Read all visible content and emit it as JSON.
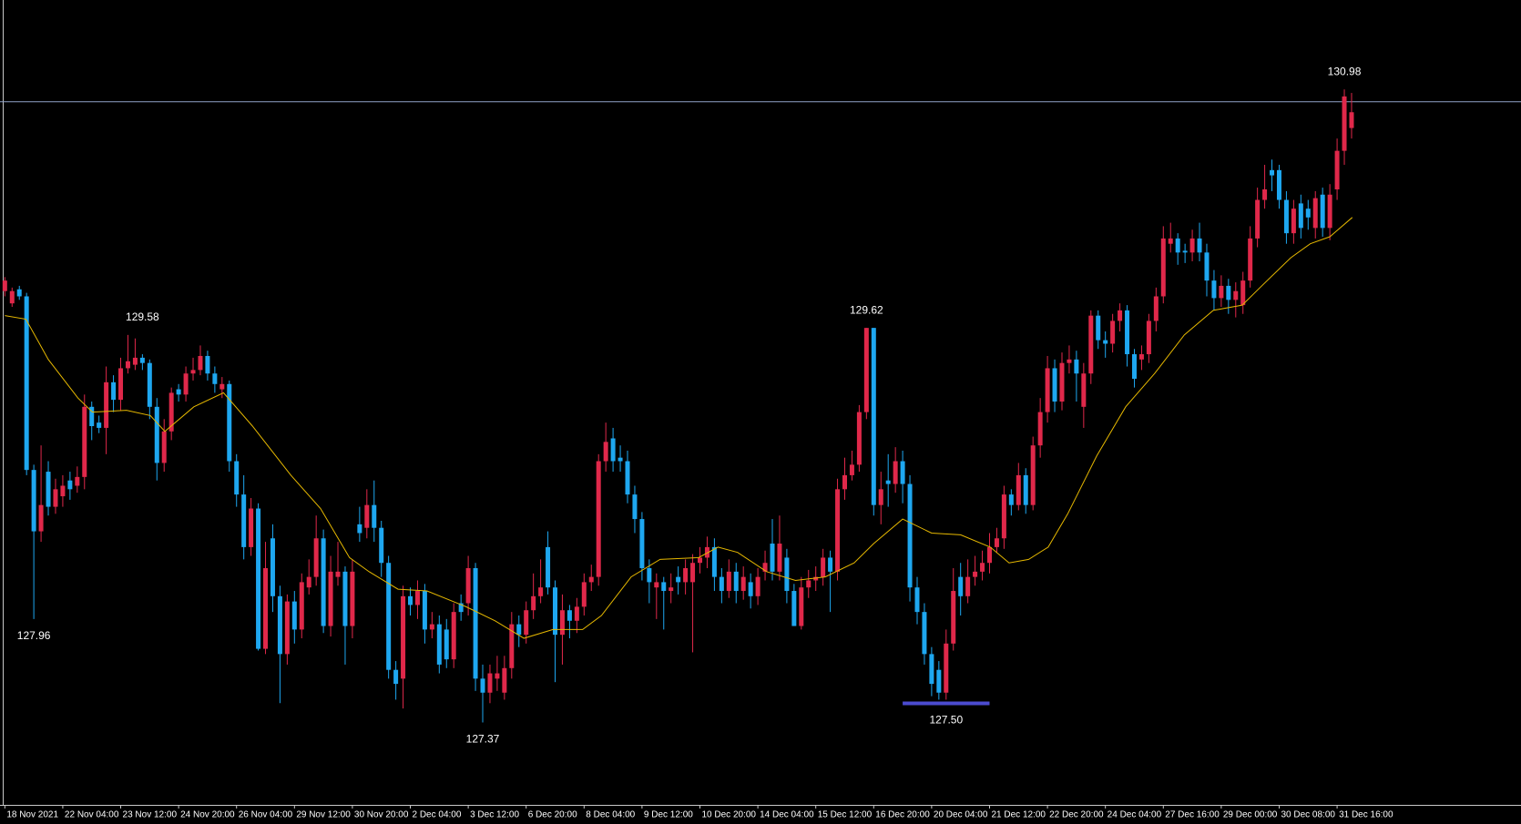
{
  "chart_data": {
    "type": "candlestick",
    "up_color": "#e0284a",
    "down_color": "#1ea7f0",
    "ylim": [
      126.9,
      131.49
    ],
    "xlim": [
      -0.67,
      209.4
    ],
    "xticks": [
      {
        "value": 0,
        "label": "18 Nov 2021"
      },
      {
        "value": 8,
        "label": "22 Nov 04:00"
      },
      {
        "value": 16,
        "label": "23 Nov 12:00"
      },
      {
        "value": 24,
        "label": "24 Nov 20:00"
      },
      {
        "value": 32,
        "label": "26 Nov 04:00"
      },
      {
        "value": 40,
        "label": "29 Nov 12:00"
      },
      {
        "value": 48,
        "label": "30 Nov 20:00"
      },
      {
        "value": 56,
        "label": "2 Dec 04:00"
      },
      {
        "value": 64,
        "label": "3 Dec 12:00"
      },
      {
        "value": 72,
        "label": "6 Dec 20:00"
      },
      {
        "value": 80,
        "label": "8 Dec 04:00"
      },
      {
        "value": 88,
        "label": "9 Dec 12:00"
      },
      {
        "value": 96,
        "label": "10 Dec 20:00"
      },
      {
        "value": 104,
        "label": "14 Dec 04:00"
      },
      {
        "value": 112,
        "label": "15 Dec 12:00"
      },
      {
        "value": 120,
        "label": "16 Dec 20:00"
      },
      {
        "value": 128,
        "label": "20 Dec 04:00"
      },
      {
        "value": 136,
        "label": "21 Dec 12:00"
      },
      {
        "value": 144,
        "label": "22 Dec 20:00"
      },
      {
        "value": 152,
        "label": "24 Dec 04:00"
      },
      {
        "value": 160,
        "label": "27 Dec 16:00"
      },
      {
        "value": 168,
        "label": "29 Dec 00:00"
      },
      {
        "value": 176,
        "label": "30 Dec 08:00"
      },
      {
        "value": 184,
        "label": "31 Dec 16:00"
      }
    ],
    "candles": [
      [
        129.83,
        129.91,
        129.8,
        129.89
      ],
      [
        129.76,
        129.85,
        129.74,
        129.83
      ],
      [
        129.84,
        129.86,
        129.78,
        129.8
      ],
      [
        129.8,
        129.82,
        128.78,
        128.81
      ],
      [
        128.81,
        128.84,
        127.96,
        128.46
      ],
      [
        128.46,
        128.95,
        128.4,
        128.61
      ],
      [
        128.8,
        128.86,
        128.55,
        128.6
      ],
      [
        128.6,
        128.76,
        128.56,
        128.7
      ],
      [
        128.66,
        128.78,
        128.6,
        128.72
      ],
      [
        128.75,
        128.8,
        128.64,
        128.7
      ],
      [
        128.72,
        128.83,
        128.68,
        128.77
      ],
      [
        128.77,
        129.24,
        128.7,
        129.17
      ],
      [
        129.17,
        129.2,
        128.98,
        129.06
      ],
      [
        129.08,
        129.12,
        129.02,
        129.05
      ],
      [
        129.05,
        129.4,
        128.9,
        129.31
      ],
      [
        129.31,
        129.35,
        129.14,
        129.21
      ],
      [
        129.21,
        129.45,
        129.15,
        129.39
      ],
      [
        129.39,
        129.58,
        129.36,
        129.43
      ],
      [
        129.41,
        129.56,
        129.38,
        129.45
      ],
      [
        129.45,
        129.47,
        129.38,
        129.42
      ],
      [
        129.42,
        129.44,
        129.1,
        129.17
      ],
      [
        129.17,
        129.22,
        128.75,
        128.85
      ],
      [
        128.85,
        129.1,
        128.8,
        129.03
      ],
      [
        129.03,
        129.28,
        128.98,
        129.25
      ],
      [
        129.27,
        129.3,
        129.2,
        129.24
      ],
      [
        129.24,
        129.4,
        129.2,
        129.36
      ],
      [
        129.36,
        129.45,
        129.32,
        129.38
      ],
      [
        129.38,
        129.52,
        129.35,
        129.46
      ],
      [
        129.46,
        129.49,
        129.32,
        129.36
      ],
      [
        129.36,
        129.4,
        129.25,
        129.3
      ],
      [
        129.27,
        129.34,
        129.22,
        129.3
      ],
      [
        129.3,
        129.32,
        128.8,
        128.86
      ],
      [
        128.86,
        128.9,
        128.6,
        128.67
      ],
      [
        128.67,
        128.78,
        128.3,
        128.37
      ],
      [
        128.37,
        128.65,
        128.32,
        128.59
      ],
      [
        128.59,
        128.62,
        127.78,
        127.79
      ],
      [
        127.79,
        128.4,
        127.76,
        128.25
      ],
      [
        128.42,
        128.5,
        128.0,
        128.09
      ],
      [
        128.09,
        128.15,
        127.48,
        127.76
      ],
      [
        127.76,
        128.1,
        127.7,
        128.06
      ],
      [
        128.06,
        128.12,
        127.82,
        127.9
      ],
      [
        127.9,
        128.22,
        127.85,
        128.17
      ],
      [
        128.14,
        128.3,
        128.1,
        128.2
      ],
      [
        128.2,
        128.55,
        128.15,
        128.42
      ],
      [
        128.42,
        128.47,
        127.88,
        127.92
      ],
      [
        127.92,
        128.32,
        127.86,
        128.23
      ],
      [
        128.2,
        128.4,
        128.15,
        128.23
      ],
      [
        128.23,
        128.26,
        127.7,
        127.92
      ],
      [
        127.92,
        128.3,
        127.85,
        128.23
      ],
      [
        128.5,
        128.6,
        128.4,
        128.45
      ],
      [
        128.48,
        128.7,
        128.42,
        128.61
      ],
      [
        128.61,
        128.75,
        128.4,
        128.48
      ],
      [
        128.48,
        128.52,
        128.2,
        128.28
      ],
      [
        128.28,
        128.32,
        127.62,
        127.67
      ],
      [
        127.67,
        127.72,
        127.5,
        127.59
      ],
      [
        127.62,
        128.15,
        127.45,
        128.09
      ],
      [
        128.09,
        128.14,
        127.98,
        128.04
      ],
      [
        128.04,
        128.18,
        127.96,
        128.12
      ],
      [
        128.12,
        128.16,
        127.82,
        127.9
      ],
      [
        127.9,
        128.0,
        127.85,
        127.93
      ],
      [
        127.93,
        127.98,
        127.65,
        127.7
      ],
      [
        127.9,
        127.96,
        127.68,
        127.73
      ],
      [
        127.73,
        128.05,
        127.68,
        128.0
      ],
      [
        128.05,
        128.1,
        127.95,
        128.0
      ],
      [
        128.05,
        128.32,
        127.98,
        128.25
      ],
      [
        128.25,
        128.28,
        127.55,
        127.62
      ],
      [
        127.62,
        127.7,
        127.37,
        127.54
      ],
      [
        127.54,
        127.7,
        127.48,
        127.65
      ],
      [
        127.62,
        127.75,
        127.55,
        127.65
      ],
      [
        127.54,
        127.75,
        127.5,
        127.68
      ],
      [
        127.68,
        128.0,
        127.62,
        127.93
      ],
      [
        127.93,
        127.98,
        127.8,
        127.87
      ],
      [
        127.87,
        128.06,
        127.82,
        128.01
      ],
      [
        128.01,
        128.22,
        127.96,
        128.09
      ],
      [
        128.09,
        128.3,
        128.05,
        128.14
      ],
      [
        128.37,
        128.46,
        128.1,
        128.14
      ],
      [
        128.14,
        128.18,
        127.6,
        127.87
      ],
      [
        127.87,
        128.1,
        127.7,
        128.01
      ],
      [
        128.01,
        128.04,
        127.85,
        127.95
      ],
      [
        127.95,
        128.08,
        127.88,
        128.03
      ],
      [
        128.03,
        128.22,
        127.98,
        128.17
      ],
      [
        128.17,
        128.27,
        128.12,
        128.2
      ],
      [
        128.2,
        128.9,
        128.15,
        128.86
      ],
      [
        128.86,
        129.08,
        128.8,
        128.97
      ],
      [
        128.99,
        129.05,
        128.8,
        128.86
      ],
      [
        128.88,
        128.95,
        128.8,
        128.86
      ],
      [
        128.86,
        128.92,
        128.62,
        128.67
      ],
      [
        128.67,
        128.72,
        128.45,
        128.53
      ],
      [
        128.53,
        128.57,
        128.18,
        128.25
      ],
      [
        128.25,
        128.3,
        128.05,
        128.17
      ],
      [
        128.14,
        128.22,
        127.96,
        128.17
      ],
      [
        128.17,
        128.2,
        127.9,
        128.12
      ],
      [
        128.12,
        128.22,
        128.05,
        128.14
      ],
      [
        128.2,
        128.26,
        128.1,
        128.17
      ],
      [
        128.17,
        128.3,
        128.1,
        128.25
      ],
      [
        128.17,
        128.33,
        127.77,
        128.28
      ],
      [
        128.28,
        128.37,
        128.22,
        128.31
      ],
      [
        128.31,
        128.43,
        128.25,
        128.37
      ],
      [
        128.37,
        128.42,
        128.12,
        128.2
      ],
      [
        128.2,
        128.25,
        128.05,
        128.12
      ],
      [
        128.12,
        128.3,
        128.08,
        128.23
      ],
      [
        128.23,
        128.28,
        128.05,
        128.12
      ],
      [
        128.12,
        128.26,
        128.07,
        128.2
      ],
      [
        128.17,
        128.22,
        128.02,
        128.09
      ],
      [
        128.09,
        128.25,
        128.04,
        128.2
      ],
      [
        128.23,
        128.35,
        128.18,
        128.28
      ],
      [
        128.39,
        128.53,
        128.18,
        128.23
      ],
      [
        128.23,
        128.55,
        128.18,
        128.39
      ],
      [
        128.31,
        128.36,
        128.05,
        128.12
      ],
      [
        128.12,
        128.16,
        127.92,
        127.92
      ],
      [
        127.92,
        128.2,
        127.9,
        128.14
      ],
      [
        128.14,
        128.24,
        128.08,
        128.18
      ],
      [
        128.18,
        128.26,
        128.12,
        128.2
      ],
      [
        128.2,
        128.36,
        128.15,
        128.31
      ],
      [
        128.31,
        128.35,
        128.0,
        128.23
      ],
      [
        128.23,
        128.76,
        128.18,
        128.7
      ],
      [
        128.7,
        128.88,
        128.64,
        128.78
      ],
      [
        128.78,
        128.92,
        128.75,
        128.84
      ],
      [
        128.84,
        129.18,
        128.8,
        129.14
      ],
      [
        129.14,
        129.62,
        129.1,
        129.62
      ],
      [
        129.62,
        129.62,
        128.55,
        128.61
      ],
      [
        128.61,
        128.8,
        128.5,
        128.7
      ],
      [
        128.75,
        128.9,
        128.6,
        128.73
      ],
      [
        128.73,
        128.94,
        128.68,
        128.86
      ],
      [
        128.86,
        128.92,
        128.62,
        128.73
      ],
      [
        128.73,
        128.78,
        128.06,
        128.14
      ],
      [
        128.14,
        128.2,
        127.93,
        128.0
      ],
      [
        128.0,
        128.05,
        127.7,
        127.76
      ],
      [
        127.76,
        127.8,
        127.52,
        127.59
      ],
      [
        127.67,
        127.72,
        127.5,
        127.54
      ],
      [
        127.54,
        127.9,
        127.5,
        127.82
      ],
      [
        127.82,
        128.25,
        127.78,
        128.12
      ],
      [
        128.2,
        128.28,
        127.98,
        128.09
      ],
      [
        128.09,
        128.3,
        128.05,
        128.2
      ],
      [
        128.2,
        128.32,
        128.15,
        128.23
      ],
      [
        128.23,
        128.35,
        128.18,
        128.28
      ],
      [
        128.28,
        128.45,
        128.22,
        128.37
      ],
      [
        128.37,
        128.48,
        128.34,
        128.42
      ],
      [
        128.42,
        128.72,
        128.36,
        128.67
      ],
      [
        128.67,
        128.7,
        128.55,
        128.61
      ],
      [
        128.61,
        128.85,
        128.58,
        128.78
      ],
      [
        128.78,
        128.82,
        128.56,
        128.61
      ],
      [
        128.61,
        129.0,
        128.58,
        128.95
      ],
      [
        128.95,
        129.22,
        128.88,
        129.14
      ],
      [
        129.14,
        129.46,
        129.08,
        129.39
      ],
      [
        129.39,
        129.44,
        129.14,
        129.2
      ],
      [
        129.2,
        129.48,
        129.15,
        129.42
      ],
      [
        129.42,
        129.52,
        129.36,
        129.44
      ],
      [
        129.44,
        129.49,
        129.2,
        129.36
      ],
      [
        129.17,
        129.42,
        129.05,
        129.36
      ],
      [
        129.36,
        129.72,
        129.3,
        129.69
      ],
      [
        129.69,
        129.72,
        129.5,
        129.55
      ],
      [
        129.55,
        129.6,
        129.45,
        129.53
      ],
      [
        129.53,
        129.7,
        129.48,
        129.66
      ],
      [
        129.66,
        129.76,
        129.6,
        129.72
      ],
      [
        129.72,
        129.75,
        129.4,
        129.47
      ],
      [
        129.47,
        129.5,
        129.28,
        129.33
      ],
      [
        129.44,
        129.52,
        129.38,
        129.47
      ],
      [
        129.47,
        129.7,
        129.42,
        129.66
      ],
      [
        129.66,
        129.85,
        129.6,
        129.8
      ],
      [
        129.8,
        130.2,
        129.76,
        130.13
      ],
      [
        130.1,
        130.22,
        130.05,
        130.13
      ],
      [
        130.13,
        130.16,
        129.98,
        130.05
      ],
      [
        130.06,
        130.1,
        129.99,
        130.05
      ],
      [
        130.05,
        130.18,
        130.0,
        130.13
      ],
      [
        130.13,
        130.22,
        130.0,
        130.05
      ],
      [
        130.05,
        130.1,
        129.8,
        129.89
      ],
      [
        129.89,
        129.95,
        129.72,
        129.79
      ],
      [
        129.79,
        129.92,
        129.74,
        129.86
      ],
      [
        129.86,
        129.9,
        129.7,
        129.78
      ],
      [
        129.78,
        129.88,
        129.68,
        129.83
      ],
      [
        129.75,
        129.94,
        129.7,
        129.89
      ],
      [
        129.89,
        130.2,
        129.85,
        130.13
      ],
      [
        130.13,
        130.42,
        130.08,
        130.35
      ],
      [
        130.35,
        130.55,
        130.3,
        130.41
      ],
      [
        130.52,
        130.58,
        130.4,
        130.49
      ],
      [
        130.52,
        130.55,
        130.3,
        130.35
      ],
      [
        130.35,
        130.4,
        130.1,
        130.16
      ],
      [
        130.16,
        130.35,
        130.1,
        130.3
      ],
      [
        130.33,
        130.38,
        130.13,
        130.19
      ],
      [
        130.3,
        130.35,
        130.18,
        130.25
      ],
      [
        130.19,
        130.4,
        130.13,
        130.36
      ],
      [
        130.38,
        130.42,
        130.14,
        130.19
      ],
      [
        130.19,
        130.44,
        130.12,
        130.38
      ],
      [
        130.41,
        130.7,
        130.35,
        130.63
      ],
      [
        130.63,
        130.98,
        130.55,
        130.94
      ],
      [
        130.76,
        130.96,
        130.7,
        130.85
      ]
    ],
    "ma": {
      "color": "#e6b800",
      "x": [
        0,
        2.9,
        6.0,
        10.1,
        12.1,
        16.8,
        20.1,
        22.1,
        26.1,
        30.2,
        34.2,
        39.5,
        43.6,
        47.6,
        50.3,
        54.3,
        58.3,
        63.7,
        67.7,
        71.7,
        75.7,
        79.8,
        82.4,
        86.5,
        90.5,
        95.8,
        98.5,
        101.2,
        105.2,
        109.2,
        113.3,
        117.3,
        120.0,
        124.0,
        128.0,
        132.0,
        136.1,
        138.7,
        141.4,
        144.1,
        146.8,
        150.8,
        154.8,
        158.8,
        162.9,
        166.9,
        170.9,
        173.6,
        177.6,
        180.3,
        183.0,
        186.1
      ],
      "values": [
        129.69,
        129.67,
        129.44,
        129.22,
        129.14,
        129.15,
        129.12,
        129.03,
        129.17,
        129.25,
        129.06,
        128.78,
        128.59,
        128.31,
        128.23,
        128.13,
        128.12,
        128.03,
        127.95,
        127.85,
        127.9,
        127.9,
        127.98,
        128.2,
        128.3,
        128.31,
        128.37,
        128.34,
        128.23,
        128.18,
        128.2,
        128.28,
        128.39,
        128.53,
        128.45,
        128.44,
        128.37,
        128.28,
        128.3,
        128.37,
        128.56,
        128.89,
        129.17,
        129.36,
        129.58,
        129.72,
        129.75,
        129.86,
        130.02,
        130.1,
        130.14,
        130.25
      ]
    },
    "price_line": {
      "value": 130.91,
      "color": "#8fa3c8"
    },
    "annotations": [
      {
        "value": 130.98,
        "index": 185,
        "position": "above"
      },
      {
        "value": 129.58,
        "index": 19,
        "position": "above"
      },
      {
        "value": 129.62,
        "index": 119,
        "position": "above"
      },
      {
        "value": 127.96,
        "index": 4,
        "position": "below"
      },
      {
        "value": 127.37,
        "index": 66,
        "position": "below"
      },
      {
        "value": 127.5,
        "label": "127.50",
        "index": 130,
        "position": "below",
        "bar": {
          "from": 124,
          "to": 136,
          "color": "#4b4bd0"
        }
      }
    ]
  }
}
